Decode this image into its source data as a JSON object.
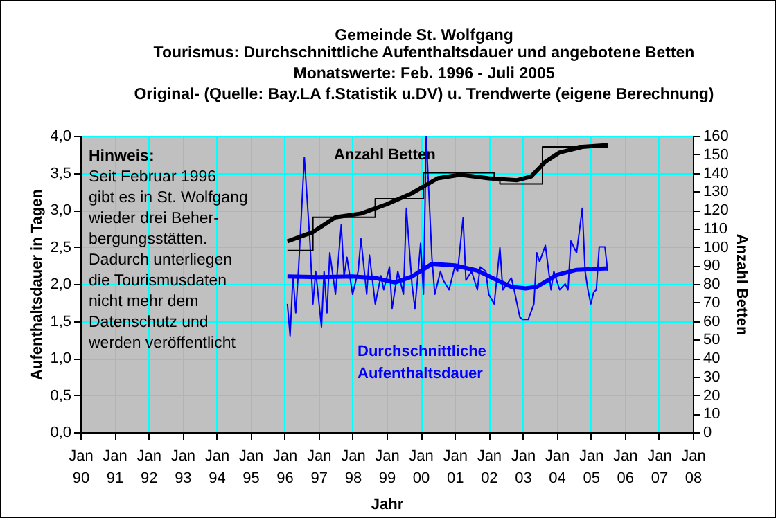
{
  "chart_data": {
    "type": "line",
    "title": "Gemeinde St. Wolfgang",
    "subtitle": "Tourismus: Durchschnittliche Aufenthaltsdauer und angebotene Betten\nMonatswerte: Feb. 1996 - Juli 2005\nOriginal- (Quelle: Bay.LA f.Statistik u.DV) u. Trendwerte (eigene Berechnung)",
    "xlabel": "Jahr",
    "ylabel": "Aufenthaltsdauer in Tagen",
    "y2label": "Anzahl Betten",
    "annotations": [
      "Hinweis:",
      "Seit Februar 1996\ngibt es in St. Wolfgang\nwieder drei Beher-\nbergungsstätten.\nDadurch unterliegen\ndie Tourismusdaten\nnicht mehr dem\nDatenschutz und\nwerden veröffentlicht"
    ],
    "series": [
      {
        "name": "Durchschnittliche Aufenthaltsdauer",
        "type": "line",
        "color": "#0000ff",
        "x": [
          "1996-02",
          "1996-03",
          "1996-04",
          "1996-05",
          "1996-06",
          "1996-08",
          "1996-10",
          "1996-11",
          "1996-12",
          "1997-02",
          "1997-03",
          "1997-04",
          "1997-05",
          "1997-07",
          "1997-09",
          "1997-10",
          "1997-11",
          "1998-01",
          "1998-03",
          "1998-04",
          "1998-06",
          "1998-07",
          "1998-09",
          "1998-11",
          "1998-12",
          "1999-02",
          "1999-03",
          "1999-05",
          "1999-07",
          "1999-08",
          "1999-10",
          "1999-11",
          "2000-01",
          "2000-02",
          "2000-03",
          "2000-05",
          "2000-06",
          "2000-08",
          "2000-09",
          "2000-11",
          "2001-01",
          "2001-02",
          "2001-04",
          "2001-05",
          "2001-07",
          "2001-09",
          "2001-10",
          "2001-12",
          "2002-01",
          "2002-03",
          "2002-05",
          "2002-06",
          "2002-09",
          "2002-10",
          "2002-12",
          "2003-01",
          "2003-03",
          "2003-05",
          "2003-06",
          "2003-07",
          "2003-09",
          "2003-11",
          "2003-12",
          "2004-02",
          "2004-04",
          "2004-05",
          "2004-06",
          "2004-08",
          "2004-10",
          "2004-11",
          "2004-12",
          "2005-01",
          "2005-02",
          "2005-03",
          "2005-04",
          "2005-06",
          "2005-07"
        ],
        "values": [
          1.73,
          1.3,
          2.11,
          1.61,
          2.23,
          3.71,
          2.55,
          1.73,
          2.17,
          1.42,
          2.17,
          1.61,
          2.42,
          1.86,
          2.8,
          2.11,
          2.36,
          1.86,
          2.17,
          2.61,
          1.86,
          2.39,
          1.73,
          2.11,
          1.92,
          2.23,
          1.67,
          2.17,
          1.86,
          3.02,
          1.98,
          1.67,
          2.55,
          1.86,
          4.0,
          2.36,
          1.86,
          2.17,
          2.05,
          1.92,
          2.23,
          2.17,
          2.89,
          2.05,
          2.17,
          1.92,
          2.23,
          2.17,
          1.86,
          1.73,
          2.49,
          1.92,
          2.08,
          1.92,
          1.55,
          1.52,
          1.52,
          1.73,
          2.42,
          2.3,
          2.52,
          1.92,
          2.17,
          1.92,
          2.0,
          1.92,
          2.58,
          2.42,
          3.02,
          2.17,
          1.92,
          1.73,
          1.89,
          1.92,
          2.5,
          2.5,
          2.17
        ]
      },
      {
        "type": "line",
        "color": "#0000ff",
        "x": [
          "1996-02",
          "1997-01",
          "1998-01",
          "1998-09",
          "1999-04",
          "1999-10",
          "2000-05",
          "2001-01",
          "2001-09",
          "2002-04",
          "2002-09",
          "2003-02",
          "2003-06",
          "2004-01",
          "2004-08",
          "2005-07"
        ],
        "values": [
          2.1,
          2.09,
          2.1,
          2.08,
          2.02,
          2.1,
          2.27,
          2.25,
          2.18,
          2.05,
          1.96,
          1.94,
          1.96,
          2.12,
          2.19,
          2.21
        ]
      },
      {
        "name": "Anzahl Betten",
        "type": "step",
        "axis": "y2",
        "color": "#000000",
        "x": [
          "1996-02",
          "1996-11",
          "1998-09",
          "2000-02",
          "2002-03",
          "2002-05",
          "2003-08",
          "2005-07"
        ],
        "values": [
          98,
          116,
          126,
          140,
          137,
          134,
          154,
          154
        ]
      },
      {
        "type": "line",
        "axis": "y2",
        "color": "#000000",
        "x": [
          "1996-02",
          "1996-11",
          "1997-07",
          "1998-04",
          "1999-01",
          "1999-10",
          "2000-07",
          "2001-03",
          "2002-01",
          "2002-11",
          "2003-04",
          "2003-09",
          "2004-02",
          "2004-10",
          "2005-07"
        ],
        "values": [
          103,
          108,
          116,
          118,
          123,
          129,
          137,
          139,
          137,
          136,
          138,
          146,
          151,
          154,
          155
        ]
      }
    ],
    "xlim": [
      "1990-01",
      "2008-01"
    ],
    "xticks": [
      {
        "value": "1990-01",
        "label": "Jan 90"
      },
      {
        "value": "1991-01",
        "label": "Jan 91"
      },
      {
        "value": "1992-01",
        "label": "Jan 92"
      },
      {
        "value": "1993-01",
        "label": "Jan 93"
      },
      {
        "value": "1994-01",
        "label": "Jan 94"
      },
      {
        "value": "1995-01",
        "label": "Jan 95"
      },
      {
        "value": "1996-01",
        "label": "Jan 96"
      },
      {
        "value": "1997-01",
        "label": "Jan 97"
      },
      {
        "value": "1998-01",
        "label": "Jan 98"
      },
      {
        "value": "1999-01",
        "label": "Jan 99"
      },
      {
        "value": "2000-01",
        "label": "Jan 00"
      },
      {
        "value": "2001-01",
        "label": "Jan 01"
      },
      {
        "value": "2002-01",
        "label": "Jan 02"
      },
      {
        "value": "2003-01",
        "label": "Jan 03"
      },
      {
        "value": "2004-01",
        "label": "Jan 04"
      },
      {
        "value": "2005-01",
        "label": "Jan 05"
      },
      {
        "value": "2006-01",
        "label": "Jan 06"
      },
      {
        "value": "2007-01",
        "label": "Jan 07"
      },
      {
        "value": "2008-01",
        "label": "Jan 08"
      }
    ],
    "ylim": [
      0,
      4
    ],
    "yticks": [
      {
        "value": 0,
        "label": "0,0"
      },
      {
        "value": 0.5,
        "label": "0,5"
      },
      {
        "value": 1,
        "label": "1,0"
      },
      {
        "value": 1.5,
        "label": "1,5"
      },
      {
        "value": 2,
        "label": "2,0"
      },
      {
        "value": 2.5,
        "label": "2,5"
      },
      {
        "value": 3,
        "label": "3,0"
      },
      {
        "value": 3.5,
        "label": "3,5"
      },
      {
        "value": 4,
        "label": "4,0"
      }
    ],
    "y2lim": [
      0,
      160
    ],
    "y2ticks": [
      0,
      10,
      20,
      30,
      40,
      50,
      60,
      70,
      80,
      90,
      100,
      110,
      120,
      130,
      140,
      150,
      160
    ],
    "grid": true,
    "marker": "none",
    "line_style": "solid"
  }
}
